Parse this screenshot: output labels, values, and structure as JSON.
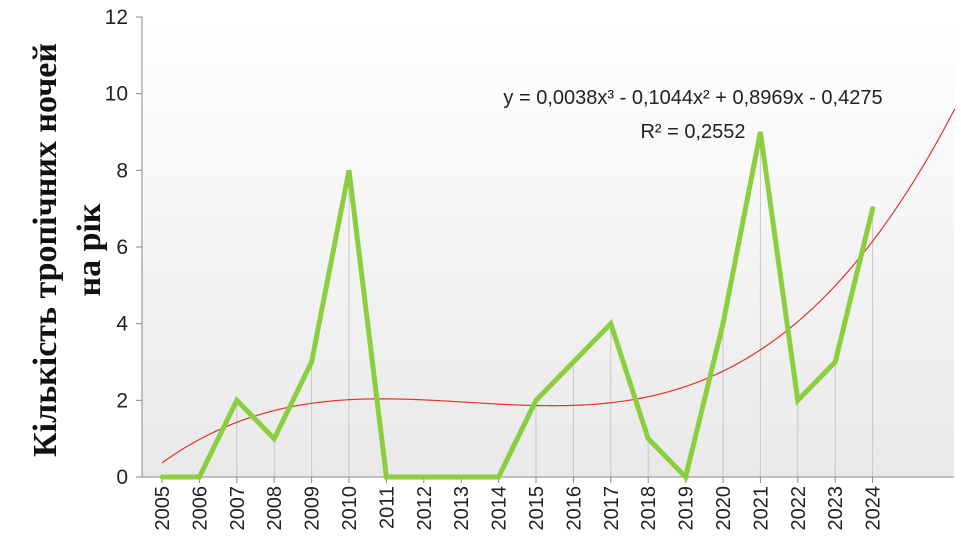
{
  "chart_data": {
    "type": "line",
    "title": "",
    "xlabel": "",
    "ylabel_lines": [
      "Кількість тропічних ночей",
      "на рік"
    ],
    "categories": [
      "2005",
      "2006",
      "2007",
      "2008",
      "2009",
      "2010",
      "2011",
      "2012",
      "2013",
      "2014",
      "2015",
      "2016",
      "2017",
      "2018",
      "2019",
      "2020",
      "2021",
      "2022",
      "2023",
      "2024"
    ],
    "series": [
      {
        "values": [
          0,
          0,
          2,
          1,
          3,
          8,
          0,
          0,
          0,
          0,
          2,
          3,
          4,
          1,
          0,
          4,
          9,
          2,
          3,
          7
        ],
        "color": "#8cce3f"
      }
    ],
    "trendline": {
      "type": "polynomial",
      "order": 3,
      "coefficients": {
        "a3": 0.0038,
        "a2": -0.1044,
        "a1": 0.8969,
        "a0": -0.4275
      },
      "equation": "y = 0,0038x³ - 0,1044x² + 0,8969x - 0,4275",
      "r2": "R² = 0,2552",
      "color": "#e8322b"
    },
    "ylim": [
      0,
      12
    ],
    "yticks": [
      0,
      2,
      4,
      6,
      8,
      10,
      12
    ],
    "legend": "none",
    "grid": false,
    "drop_lines": true
  }
}
